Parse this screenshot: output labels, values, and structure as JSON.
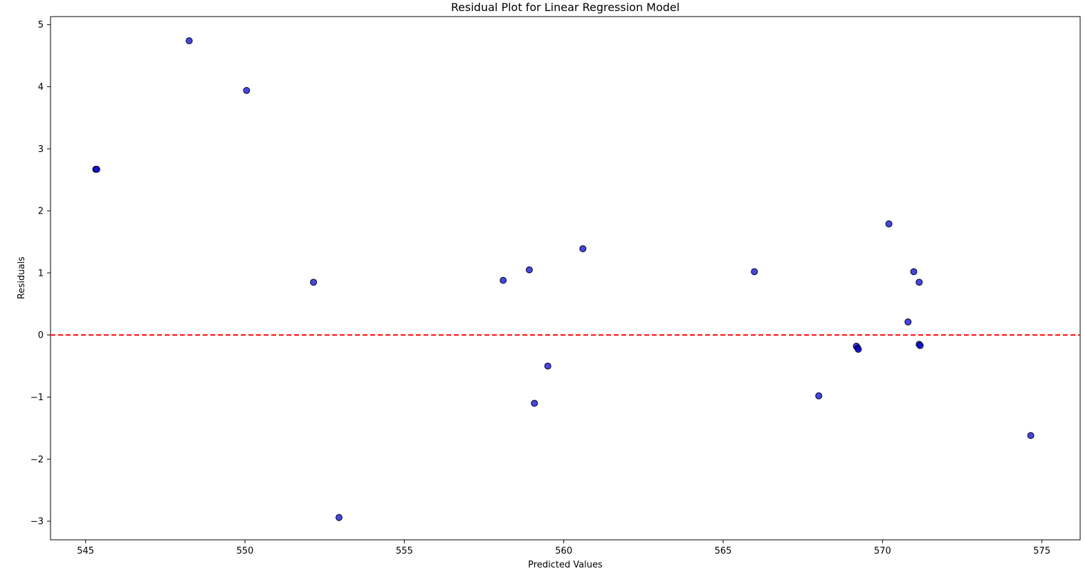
{
  "chart_data": {
    "type": "scatter",
    "title": "Residual Plot for Linear Regression Model",
    "xlabel": "Predicted Values",
    "ylabel": "Residuals",
    "xlim": [
      543.9,
      576.2
    ],
    "ylim": [
      -3.3,
      5.13
    ],
    "xticks": [
      545,
      550,
      555,
      560,
      565,
      570,
      575
    ],
    "xtick_labels": [
      "545",
      "550",
      "555",
      "560",
      "565",
      "570",
      "575"
    ],
    "yticks": [
      -3,
      -2,
      -1,
      0,
      1,
      2,
      3,
      4,
      5
    ],
    "ytick_labels": [
      "−3",
      "−2",
      "−1",
      "0",
      "1",
      "2",
      "3",
      "4",
      "5"
    ],
    "reference_line": {
      "y": 0,
      "style": "dashed",
      "color": "#ff0000"
    },
    "point_color": "#0000cc",
    "point_edge_color": "#000033",
    "grid": false,
    "legend": "none",
    "x": [
      545.32,
      545.35,
      548.25,
      550.05,
      552.15,
      552.95,
      558.1,
      558.92,
      559.08,
      559.5,
      560.6,
      565.98,
      568.0,
      569.18,
      569.22,
      569.24,
      570.2,
      570.8,
      570.98,
      571.15,
      571.15,
      571.18,
      574.65
    ],
    "y": [
      2.67,
      2.67,
      4.74,
      3.94,
      0.85,
      -2.94,
      0.88,
      1.05,
      -1.1,
      -0.5,
      1.39,
      1.02,
      -0.98,
      -0.18,
      -0.21,
      -0.23,
      1.79,
      0.21,
      1.02,
      0.85,
      -0.15,
      -0.17,
      -1.62
    ]
  }
}
